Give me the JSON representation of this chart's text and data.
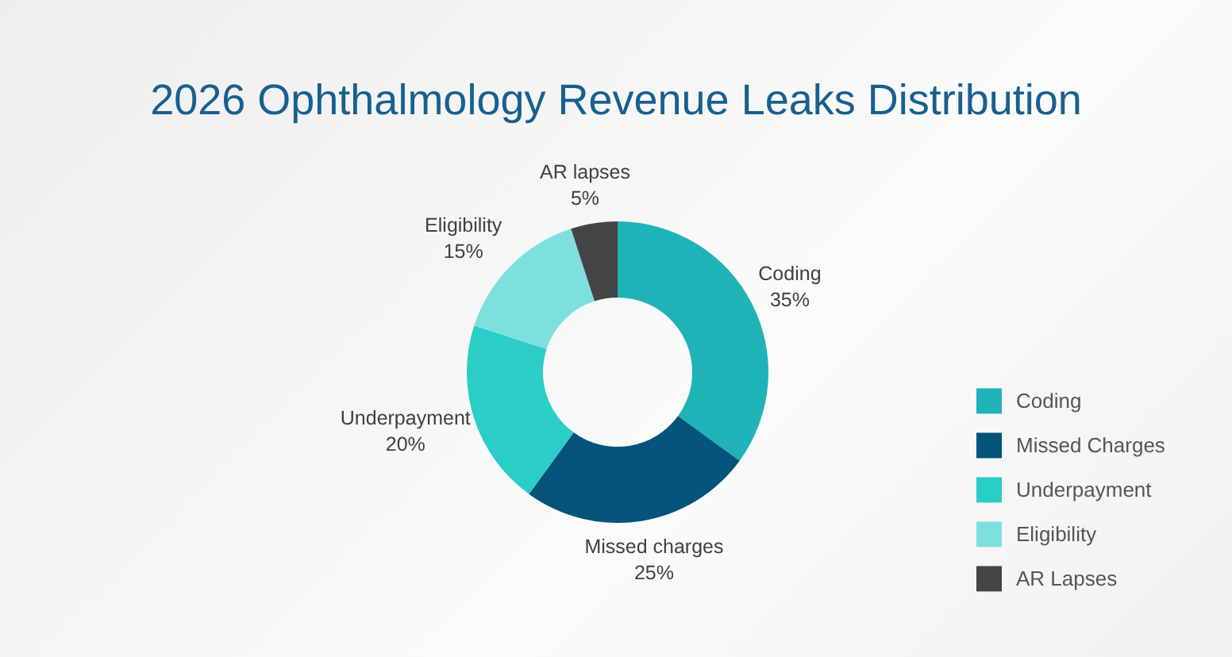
{
  "chart_data": {
    "type": "donut",
    "title": "2026 Ophthalmology Revenue Leaks Distribution",
    "categories": [
      "Coding",
      "Missed Charges",
      "Underpayment",
      "Eligibility",
      "AR Lapses"
    ],
    "values": [
      35,
      25,
      20,
      15,
      5
    ],
    "colors": [
      "#1fb3b8",
      "#04547c",
      "#2bcdc7",
      "#7ee0dc",
      "#444444"
    ],
    "value_labels": [
      "Coding\n35%",
      "Missed charges\n25%",
      "Underpayment\n20%",
      "Eligibility\n15%",
      "AR lapses\n5%"
    ],
    "legend": "right"
  }
}
